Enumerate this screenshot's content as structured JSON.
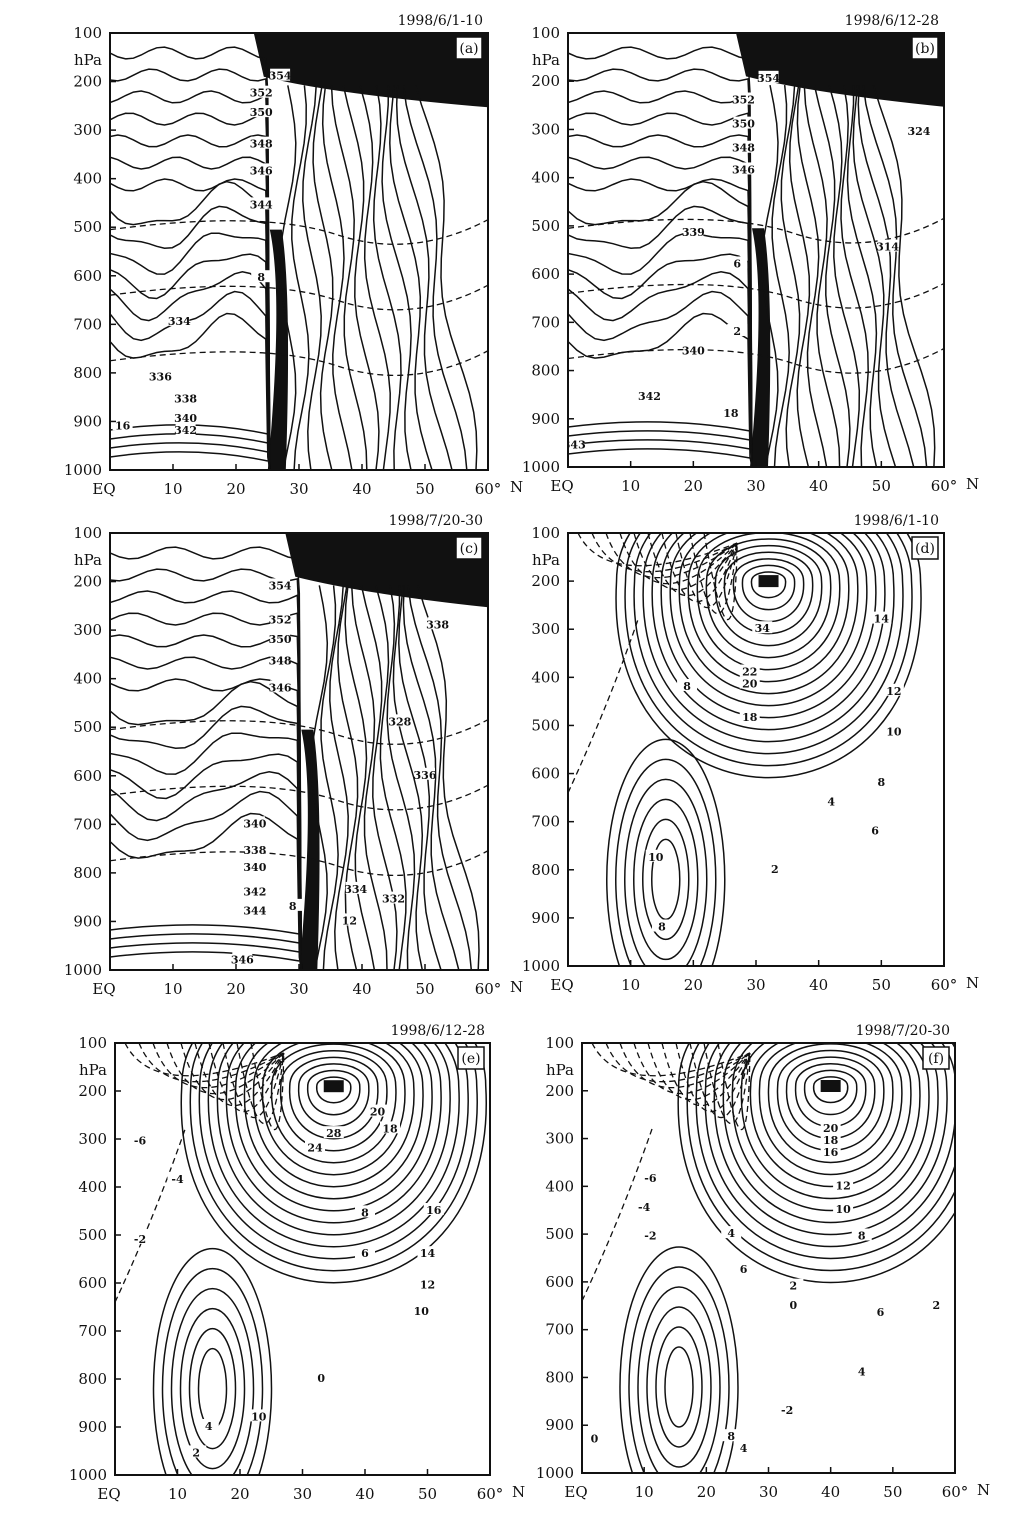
{
  "figure": {
    "y_unit": "hPa",
    "x_unit": "N",
    "y_ticks": [
      "100",
      "200",
      "300",
      "400",
      "500",
      "600",
      "700",
      "800",
      "900",
      "1000"
    ],
    "x_ticks": [
      "EQ",
      "10",
      "20",
      "30",
      "40",
      "50",
      "60°"
    ]
  },
  "chart_data": [
    {
      "type": "contour",
      "panel_label": "(a)",
      "date": "1998/6/1-10",
      "ylabel": "hPa",
      "xlabel": "N",
      "xlim": [
        0,
        60
      ],
      "ylim": [
        1000,
        100
      ],
      "front_latitude": 26,
      "contour_labels": [
        {
          "text": "354",
          "x": 27,
          "y": 190
        },
        {
          "text": "352",
          "x": 24,
          "y": 225
        },
        {
          "text": "350",
          "x": 24,
          "y": 265
        },
        {
          "text": "348",
          "x": 24,
          "y": 330
        },
        {
          "text": "346",
          "x": 24,
          "y": 385
        },
        {
          "text": "344",
          "x": 24,
          "y": 455
        },
        {
          "text": "8",
          "x": 24,
          "y": 605
        },
        {
          "text": "334",
          "x": 11,
          "y": 695
        },
        {
          "text": "336",
          "x": 8,
          "y": 810
        },
        {
          "text": "338",
          "x": 12,
          "y": 855
        },
        {
          "text": "340",
          "x": 12,
          "y": 895
        },
        {
          "text": "342",
          "x": 12,
          "y": 920
        },
        {
          "text": "16",
          "x": 2,
          "y": 910
        }
      ]
    },
    {
      "type": "contour",
      "panel_label": "(b)",
      "date": "1998/6/12-28",
      "ylabel": "hPa",
      "xlabel": "N",
      "xlim": [
        0,
        60
      ],
      "ylim": [
        1000,
        100
      ],
      "front_latitude": 30,
      "contour_labels": [
        {
          "text": "354",
          "x": 32,
          "y": 195
        },
        {
          "text": "352",
          "x": 28,
          "y": 240
        },
        {
          "text": "350",
          "x": 28,
          "y": 290
        },
        {
          "text": "348",
          "x": 28,
          "y": 340
        },
        {
          "text": "346",
          "x": 28,
          "y": 385
        },
        {
          "text": "324",
          "x": 56,
          "y": 305
        },
        {
          "text": "339",
          "x": 20,
          "y": 515
        },
        {
          "text": "314",
          "x": 51,
          "y": 545
        },
        {
          "text": "6",
          "x": 27,
          "y": 580
        },
        {
          "text": "2",
          "x": 27,
          "y": 720
        },
        {
          "text": "340",
          "x": 20,
          "y": 760
        },
        {
          "text": "342",
          "x": 13,
          "y": 855
        },
        {
          "text": "18",
          "x": 26,
          "y": 890
        },
        {
          "text": "343",
          "x": 1,
          "y": 955
        }
      ]
    },
    {
      "type": "contour",
      "panel_label": "(c)",
      "date": "1998/7/20-30",
      "ylabel": "hPa",
      "xlabel": "N",
      "xlim": [
        0,
        60
      ],
      "ylim": [
        1000,
        100
      ],
      "front_latitude": 31,
      "contour_labels": [
        {
          "text": "354",
          "x": 27,
          "y": 210
        },
        {
          "text": "352",
          "x": 27,
          "y": 280
        },
        {
          "text": "350",
          "x": 27,
          "y": 320
        },
        {
          "text": "348",
          "x": 27,
          "y": 365
        },
        {
          "text": "346",
          "x": 27,
          "y": 420
        },
        {
          "text": "338",
          "x": 52,
          "y": 290
        },
        {
          "text": "328",
          "x": 46,
          "y": 490
        },
        {
          "text": "336",
          "x": 50,
          "y": 600
        },
        {
          "text": "340",
          "x": 23,
          "y": 700
        },
        {
          "text": "338",
          "x": 23,
          "y": 755
        },
        {
          "text": "340",
          "x": 23,
          "y": 790
        },
        {
          "text": "342",
          "x": 23,
          "y": 840
        },
        {
          "text": "344",
          "x": 23,
          "y": 880
        },
        {
          "text": "346",
          "x": 21,
          "y": 980
        },
        {
          "text": "8",
          "x": 29,
          "y": 870
        },
        {
          "text": "334",
          "x": 39,
          "y": 835
        },
        {
          "text": "332",
          "x": 45,
          "y": 855
        },
        {
          "text": "12",
          "x": 38,
          "y": 900
        }
      ]
    },
    {
      "type": "contour",
      "panel_label": "(d)",
      "date": "1998/6/1-10",
      "ylabel": "hPa",
      "xlabel": "N",
      "xlim": [
        0,
        60
      ],
      "ylim": [
        1000,
        100
      ],
      "jet_center": {
        "x": 32,
        "y": 200
      },
      "contour_labels": [
        {
          "text": "34",
          "x": 31,
          "y": 300
        },
        {
          "text": "22",
          "x": 29,
          "y": 390
        },
        {
          "text": "20",
          "x": 29,
          "y": 415
        },
        {
          "text": "18",
          "x": 29,
          "y": 485
        },
        {
          "text": "14",
          "x": 50,
          "y": 280
        },
        {
          "text": "12",
          "x": 52,
          "y": 430
        },
        {
          "text": "10",
          "x": 52,
          "y": 515
        },
        {
          "text": "8",
          "x": 50,
          "y": 620
        },
        {
          "text": "6",
          "x": 49,
          "y": 720
        },
        {
          "text": "8",
          "x": 19,
          "y": 420
        },
        {
          "text": "4",
          "x": 42,
          "y": 660
        },
        {
          "text": "2",
          "x": 33,
          "y": 800
        },
        {
          "text": "10",
          "x": 14,
          "y": 775
        },
        {
          "text": "8",
          "x": 15,
          "y": 920
        }
      ]
    },
    {
      "type": "contour",
      "panel_label": "(e)",
      "date": "1998/6/12-28",
      "ylabel": "hPa",
      "xlabel": "N",
      "xlim": [
        0,
        60
      ],
      "ylim": [
        1000,
        100
      ],
      "jet_center": {
        "x": 35,
        "y": 190
      },
      "contour_labels": [
        {
          "text": "20",
          "x": 42,
          "y": 245
        },
        {
          "text": "28",
          "x": 35,
          "y": 290
        },
        {
          "text": "18",
          "x": 44,
          "y": 280
        },
        {
          "text": "24",
          "x": 32,
          "y": 320
        },
        {
          "text": "-6",
          "x": 4,
          "y": 305
        },
        {
          "text": "-4",
          "x": 10,
          "y": 385
        },
        {
          "text": "-2",
          "x": 4,
          "y": 510
        },
        {
          "text": "16",
          "x": 51,
          "y": 450
        },
        {
          "text": "14",
          "x": 50,
          "y": 540
        },
        {
          "text": "12",
          "x": 50,
          "y": 605
        },
        {
          "text": "10",
          "x": 49,
          "y": 660
        },
        {
          "text": "8",
          "x": 40,
          "y": 455
        },
        {
          "text": "6",
          "x": 40,
          "y": 540
        },
        {
          "text": "10",
          "x": 23,
          "y": 880
        },
        {
          "text": "0",
          "x": 33,
          "y": 800
        },
        {
          "text": "4",
          "x": 15,
          "y": 900
        },
        {
          "text": "2",
          "x": 13,
          "y": 955
        }
      ]
    },
    {
      "type": "contour",
      "panel_label": "(f)",
      "date": "1998/7/20-30",
      "ylabel": "hPa",
      "xlabel": "N",
      "xlim": [
        0,
        60
      ],
      "ylim": [
        1000,
        100
      ],
      "jet_center": {
        "x": 40,
        "y": 190
      },
      "contour_labels": [
        {
          "text": "20",
          "x": 40,
          "y": 280
        },
        {
          "text": "18",
          "x": 40,
          "y": 305
        },
        {
          "text": "16",
          "x": 40,
          "y": 330
        },
        {
          "text": "12",
          "x": 42,
          "y": 400
        },
        {
          "text": "10",
          "x": 42,
          "y": 450
        },
        {
          "text": "8",
          "x": 45,
          "y": 505
        },
        {
          "text": "-6",
          "x": 11,
          "y": 385
        },
        {
          "text": "-4",
          "x": 10,
          "y": 445
        },
        {
          "text": "-2",
          "x": 11,
          "y": 505
        },
        {
          "text": "4",
          "x": 24,
          "y": 500
        },
        {
          "text": "6",
          "x": 26,
          "y": 575
        },
        {
          "text": "2",
          "x": 34,
          "y": 610
        },
        {
          "text": "0",
          "x": 34,
          "y": 650
        },
        {
          "text": "6",
          "x": 48,
          "y": 665
        },
        {
          "text": "2",
          "x": 57,
          "y": 650
        },
        {
          "text": "4",
          "x": 45,
          "y": 790
        },
        {
          "text": "-2",
          "x": 33,
          "y": 870
        },
        {
          "text": "8",
          "x": 24,
          "y": 925
        },
        {
          "text": "4",
          "x": 26,
          "y": 950
        },
        {
          "text": "0",
          "x": 2,
          "y": 930
        }
      ]
    }
  ]
}
